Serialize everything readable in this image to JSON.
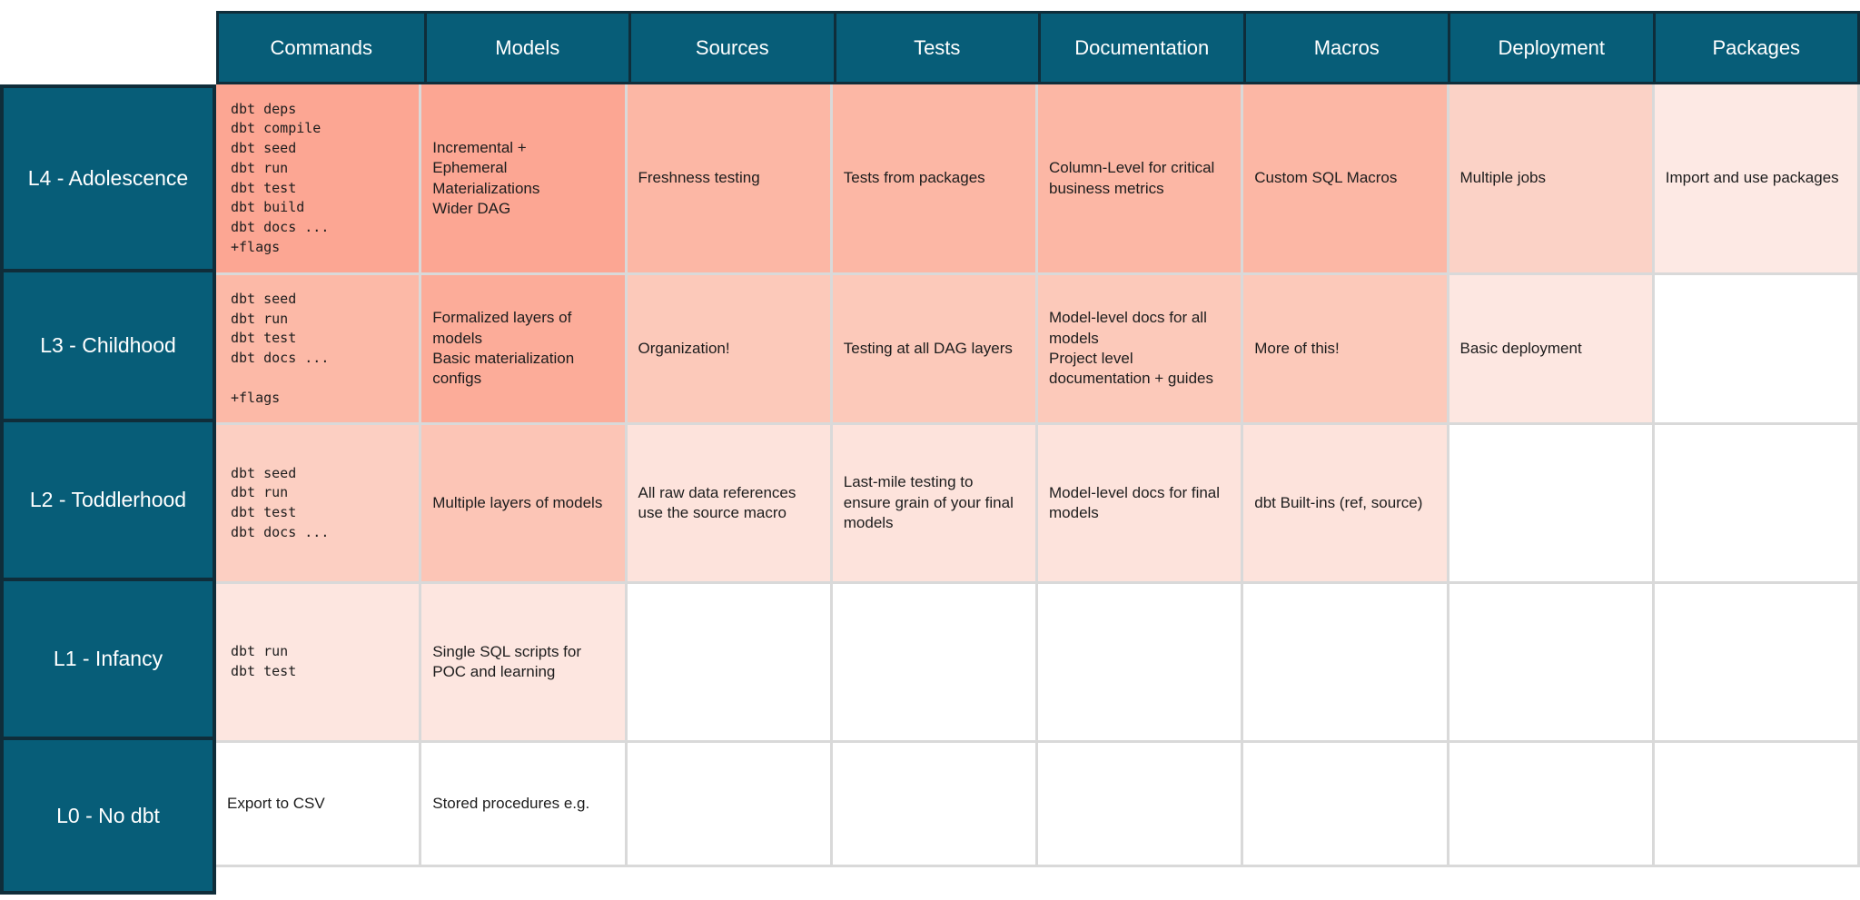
{
  "colors": {
    "header_bg": "#075D78",
    "header_text": "#FFFFFF",
    "border_dark": "#0F2D3A",
    "gridline": "#D9D9D9",
    "cell_text": "#1D1D1D"
  },
  "table": {
    "columns": [
      "Commands",
      "Models",
      "Sources",
      "Tests",
      "Documentation",
      "Macros",
      "Deployment",
      "Packages"
    ],
    "rows": [
      {
        "label": "L4 - Adolescence",
        "cells": [
          {
            "text": "dbt deps\ndbt compile\ndbt seed\ndbt run\ndbt test\ndbt build\ndbt docs ...\n+flags",
            "bg": "#FCA693"
          },
          {
            "text": "Incremental +\nEphemeral\nMaterializations\nWider DAG",
            "bg": "#FCA693"
          },
          {
            "text": "Freshness testing",
            "bg": "#FCB7A5"
          },
          {
            "text": "Tests from packages",
            "bg": "#FCB7A5"
          },
          {
            "text": "Column-Level for critical\nbusiness metrics",
            "bg": "#FCB7A5"
          },
          {
            "text": "Custom SQL Macros",
            "bg": "#FCB7A5"
          },
          {
            "text": "Multiple jobs",
            "bg": "#FBD2C6"
          },
          {
            "text": "Import and use packages",
            "bg": "#FDE9E4"
          }
        ]
      },
      {
        "label": "L3 - Childhood",
        "cells": [
          {
            "text": "dbt seed\ndbt run\ndbt test\ndbt docs ...\n\n+flags",
            "bg": "#FCB9A7"
          },
          {
            "text": "Formalized layers of\nmodels\nBasic materialization\nconfigs",
            "bg": "#FCAC99"
          },
          {
            "text": "Organization!",
            "bg": "#FCC9BA"
          },
          {
            "text": "Testing at all DAG layers",
            "bg": "#FCC9BA"
          },
          {
            "text": "Model-level docs for all\nmodels\nProject level\ndocumentation + guides",
            "bg": "#FCC9BA"
          },
          {
            "text": "More of this!",
            "bg": "#FCC9BA"
          },
          {
            "text": "Basic deployment",
            "bg": "#FDE7E1"
          },
          {
            "text": "",
            "bg": "#FFFFFF"
          }
        ]
      },
      {
        "label": "L2 - Toddlerhood",
        "cells": [
          {
            "text": "dbt seed\ndbt run\ndbt test\ndbt docs ...",
            "bg": "#FCCFC2"
          },
          {
            "text": "Multiple layers of models",
            "bg": "#FCC5B6"
          },
          {
            "text": "All raw data references\nuse the source macro",
            "bg": "#FDE3DC"
          },
          {
            "text": "Last-mile testing to\nensure grain of your final\nmodels",
            "bg": "#FDE3DC"
          },
          {
            "text": "Model-level docs for final\nmodels",
            "bg": "#FDE3DC"
          },
          {
            "text": "dbt Built-ins (ref, source)",
            "bg": "#FDE3DC"
          },
          {
            "text": "",
            "bg": "#FFFFFF"
          },
          {
            "text": "",
            "bg": "#FFFFFF"
          }
        ]
      },
      {
        "label": "L1 - Infancy",
        "cells": [
          {
            "text": "dbt run\ndbt test",
            "bg": "#FDE6E0"
          },
          {
            "text": "Single SQL scripts for\nPOC and learning",
            "bg": "#FDE6E0"
          },
          {
            "text": "",
            "bg": "#FFFFFF"
          },
          {
            "text": "",
            "bg": "#FFFFFF"
          },
          {
            "text": "",
            "bg": "#FFFFFF"
          },
          {
            "text": "",
            "bg": "#FFFFFF"
          },
          {
            "text": "",
            "bg": "#FFFFFF"
          },
          {
            "text": "",
            "bg": "#FFFFFF"
          }
        ]
      },
      {
        "label": "L0 - No dbt",
        "cells": [
          {
            "text": "Export to CSV",
            "bg": "#FFFFFF"
          },
          {
            "text": "Stored procedures e.g.",
            "bg": "#FFFFFF"
          },
          {
            "text": "",
            "bg": "#FFFFFF"
          },
          {
            "text": "",
            "bg": "#FFFFFF"
          },
          {
            "text": "",
            "bg": "#FFFFFF"
          },
          {
            "text": "",
            "bg": "#FFFFFF"
          },
          {
            "text": "",
            "bg": "#FFFFFF"
          },
          {
            "text": "",
            "bg": "#FFFFFF"
          }
        ]
      }
    ]
  }
}
